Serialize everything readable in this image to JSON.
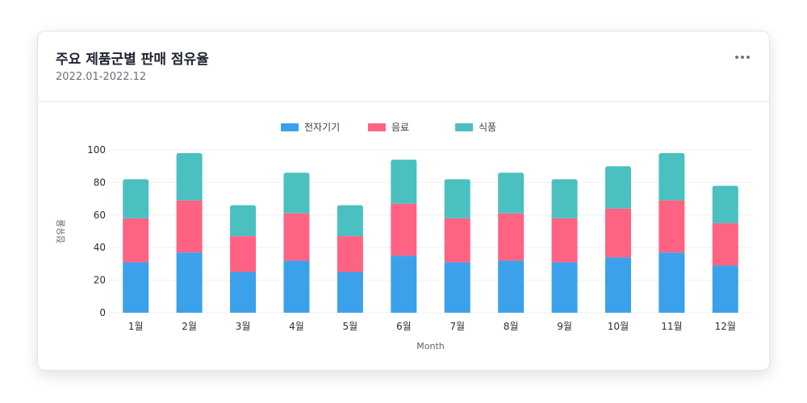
{
  "card": {
    "title": "주요 제품군별 판매 점유율",
    "subtitle": "2022.01-2022.12"
  },
  "chart_data": {
    "type": "bar",
    "stacked": true,
    "categories": [
      "1월",
      "2월",
      "3월",
      "4월",
      "5월",
      "6월",
      "7월",
      "8월",
      "9월",
      "10월",
      "11월",
      "12월"
    ],
    "series": [
      {
        "name": "전자기기",
        "color": "#3ba1ea",
        "values": [
          31,
          37,
          25,
          32,
          25,
          35,
          31,
          32,
          31,
          34,
          37,
          29
        ]
      },
      {
        "name": "음료",
        "color": "#ff6384",
        "values": [
          27,
          32,
          22,
          29,
          22,
          32,
          27,
          29,
          27,
          30,
          32,
          26
        ]
      },
      {
        "name": "식품",
        "color": "#4bc0c0",
        "values": [
          24,
          29,
          19,
          25,
          19,
          27,
          24,
          25,
          24,
          26,
          29,
          23
        ]
      }
    ],
    "ylim": [
      0,
      100
    ],
    "yticks": [
      0,
      20,
      40,
      60,
      80,
      100
    ],
    "xlabel": "Month",
    "ylabel": "점유율",
    "legend": "top-center",
    "grid": true
  }
}
